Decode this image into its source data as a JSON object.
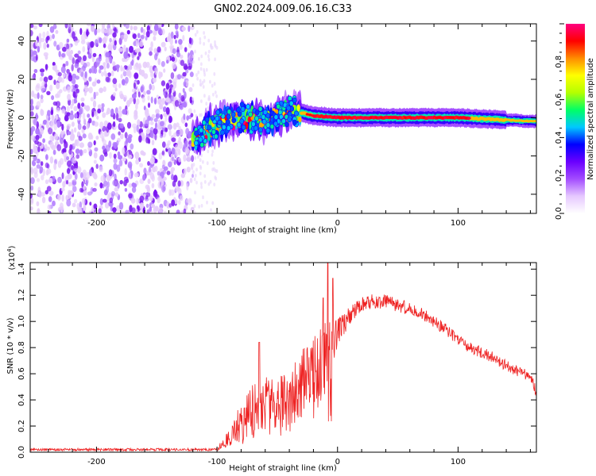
{
  "title": "GN02.2024.009.06.16.C33",
  "chart_data": [
    {
      "type": "heatmap",
      "name": "spectrogram",
      "xlabel": "Height of straight line (km)",
      "ylabel": "Frequency (Hz)",
      "xlim": [
        -255,
        165
      ],
      "ylim": [
        -50,
        49
      ],
      "xticks": [
        -200,
        -100,
        0,
        100
      ],
      "yticks": [
        -40,
        -20,
        0,
        20,
        40
      ],
      "colorbar": {
        "label": "Normalized spectral amplitude",
        "range": [
          0.0,
          1.0
        ],
        "ticks": [
          "0.0",
          "0.2",
          "0.4",
          "0.6",
          "0.8"
        ],
        "tick_values": [
          0.0,
          0.2,
          0.4,
          0.6,
          0.8
        ],
        "colors": [
          "#ffffff",
          "#e6c8ff",
          "#a34cff",
          "#6a00ff",
          "#0000ff",
          "#00c8ff",
          "#00ff66",
          "#b4ff00",
          "#ffff00",
          "#ff8c00",
          "#ff0000",
          "#ff0080"
        ]
      },
      "features": {
        "noise_region_x": [
          -255,
          -120
        ],
        "signal_track": {
          "x": [
            -120,
            -100,
            -80,
            -60,
            -40,
            -20,
            0,
            50,
            100,
            165
          ],
          "y": [
            -12,
            -3,
            0,
            -2,
            4,
            1,
            0,
            0,
            0,
            -2
          ]
        }
      }
    },
    {
      "type": "line",
      "name": "snr",
      "xlabel": "Height of straight line (km)",
      "ylabel": "SNR (10 * v/v)",
      "ylabel_multiplier": "(x10",
      "ylabel_exponent": "4",
      "ylabel_close": ")",
      "xlim": [
        -255,
        165
      ],
      "ylim": [
        0.0,
        1.45
      ],
      "xticks": [
        -200,
        -100,
        0,
        100
      ],
      "yticks": [
        "0.0",
        "0.2",
        "0.4",
        "0.6",
        "0.8",
        "1.0",
        "1.2",
        "1.4"
      ],
      "ytick_values": [
        0.0,
        0.2,
        0.4,
        0.6,
        0.8,
        1.0,
        1.2,
        1.4
      ],
      "color": "#ee2222",
      "envelope": {
        "x": [
          -255,
          -100,
          -98,
          -90,
          -80,
          -70,
          -62,
          -55,
          -50,
          -45,
          -40,
          -35,
          -30,
          -25,
          -20,
          -15,
          -10,
          -6,
          0,
          10,
          20,
          30,
          40,
          50,
          60,
          70,
          80,
          90,
          100,
          110,
          120,
          130,
          140,
          150,
          160,
          165
        ],
        "y": [
          0.02,
          0.02,
          0.04,
          0.12,
          0.22,
          0.3,
          0.4,
          0.33,
          0.3,
          0.36,
          0.42,
          0.48,
          0.52,
          0.58,
          0.62,
          0.66,
          0.7,
          0.78,
          0.92,
          1.05,
          1.13,
          1.16,
          1.15,
          1.12,
          1.1,
          1.06,
          1.0,
          0.94,
          0.86,
          0.8,
          0.76,
          0.72,
          0.66,
          0.62,
          0.58,
          0.46
        ]
      },
      "noise_amplitude": {
        "x": [
          -255,
          -100,
          -90,
          -80,
          -70,
          -60,
          -40,
          -20,
          -10,
          0,
          20,
          60,
          165
        ],
        "y": [
          0.01,
          0.01,
          0.08,
          0.16,
          0.22,
          0.25,
          0.26,
          0.28,
          0.3,
          0.1,
          0.06,
          0.05,
          0.04
        ]
      },
      "peaks": [
        {
          "x": -8,
          "y": 1.45
        },
        {
          "x": -65,
          "y": 0.84
        },
        {
          "x": -4,
          "y": 1.33
        },
        {
          "x": -12,
          "y": 1.18
        }
      ]
    }
  ]
}
